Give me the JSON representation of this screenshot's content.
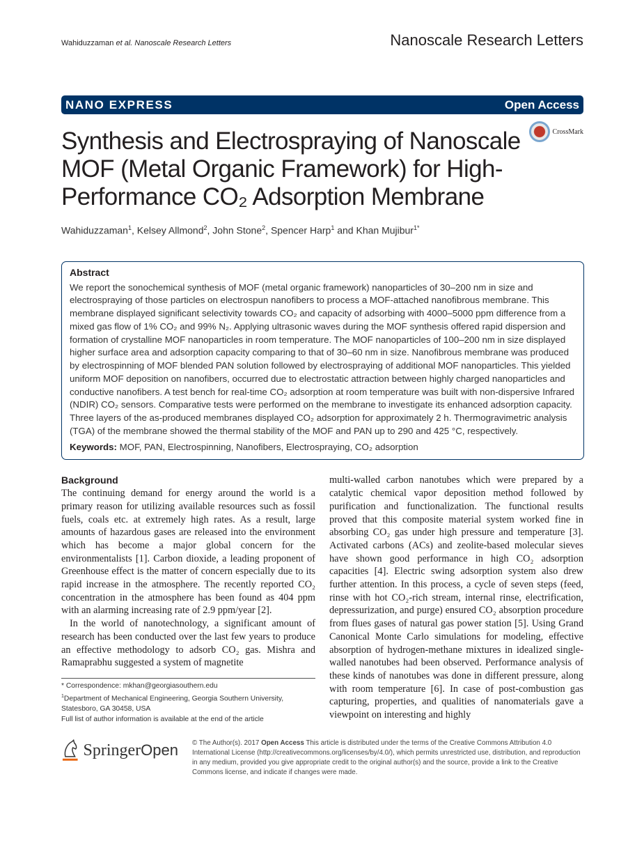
{
  "header": {
    "running_head_authors": "Wahiduzzaman",
    "running_head_etal": "et al. Nanoscale Research Letters",
    "journal": "Nanoscale Research Letters"
  },
  "banner": {
    "section": "NANO EXPRESS",
    "access": "Open Access"
  },
  "crossmark": "CrossMark",
  "title": "Synthesis and Electrospraying of Nanoscale MOF (Metal Organic Framework) for High-Performance CO₂ Adsorption Membrane",
  "authors": [
    {
      "name": "Wahiduzzaman",
      "aff": "1"
    },
    {
      "name": "Kelsey Allmond",
      "aff": "2"
    },
    {
      "name": "John Stone",
      "aff": "2"
    },
    {
      "name": "Spencer Harp",
      "aff": "1"
    },
    {
      "name": "Khan Mujibur",
      "aff": "1*"
    }
  ],
  "authors_sep": {
    "comma": ", ",
    "and": " and "
  },
  "abstract": {
    "heading": "Abstract",
    "text": "We report the sonochemical synthesis of MOF (metal organic framework) nanoparticles of 30–200 nm in size and electrospraying of those particles on electrospun nanofibers to process a MOF-attached nanofibrous membrane. This membrane displayed significant selectivity towards CO₂ and capacity of adsorbing with 4000–5000 ppm difference from a mixed gas flow of 1% CO₂ and 99% N₂. Applying ultrasonic waves during the MOF synthesis offered rapid dispersion and formation of crystalline MOF nanoparticles in room temperature. The MOF nanoparticles of 100–200 nm in size displayed higher surface area and adsorption capacity comparing to that of 30–60 nm in size. Nanofibrous membrane was produced by electrospinning of MOF blended PAN solution followed by electrospraying of additional MOF nanoparticles. This yielded uniform MOF deposition on nanofibers, occurred due to electrostatic attraction between highly charged nanoparticles and conductive nanofibers. A test bench for real-time CO₂ adsorption at room temperature was built with non-dispersive Infrared (NDIR) CO₂ sensors. Comparative tests were performed on the membrane to investigate its enhanced adsorption capacity. Three layers of the as-produced membranes displayed CO₂ adsorption for approximately 2 h. Thermogravimetric analysis (TGA) of the membrane showed the thermal stability of the MOF and PAN up to 290 and 425 °C, respectively.",
    "keywords_label": "Keywords:",
    "keywords": " MOF, PAN, Electrospinning, Nanofibers, Electrospraying, CO₂ adsorption"
  },
  "body": {
    "heading": "Background",
    "p1": "The continuing demand for energy around the world is a primary reason for utilizing available resources such as fossil fuels, coals etc. at extremely high rates. As a result, large amounts of hazardous gases are released into the environment which has become a major global concern for the environmentalists [1]. Carbon dioxide, a leading proponent of Greenhouse effect is the matter of concern especially due to its rapid increase in the atmosphere. The recently reported CO₂ concentration in the atmosphere has been found as 404 ppm with an alarming increasing rate of 2.9 ppm/year [2].",
    "p2": "In the world of nanotechnology, a significant amount of research has been conducted over the last few years to produce an effective methodology to adsorb CO₂ gas. Mishra and Ramaprabhu suggested a system of magnetite",
    "p3": "multi-walled carbon nanotubes which were prepared by a catalytic chemical vapor deposition method followed by purification and functionalization. The functional results proved that this composite material system worked fine in absorbing CO₂ gas under high pressure and temperature [3]. Activated carbons (ACs) and zeolite-based molecular sieves have shown good performance in high CO₂ adsorption capacities [4]. Electric swing adsorption system also drew further attention. In this process, a cycle of seven steps (feed, rinse with hot CO₂-rich stream, internal rinse, electrification, depressurization, and purge) ensured CO₂ absorption procedure from flues gases of natural gas power station [5]. Using Grand Canonical Monte Carlo simulations for modeling, effective absorption of hydrogen-methane mixtures in idealized single-walled nanotubes had been observed. Performance analysis of these kinds of nanotubes was done in different pressure, along with room temperature [6]. In case of post-combustion gas capturing, properties, and qualities of nanomaterials gave a viewpoint on interesting and highly"
  },
  "footnote": {
    "correspondence": "* Correspondence: mkhan@georgiasouthern.edu",
    "aff_mark": "1",
    "affiliation": "Department of Mechanical Engineering, Georgia Southern University, Statesboro, GA 30458, USA",
    "full_list": "Full list of author information is available at the end of the article"
  },
  "publisher": {
    "name1": "Springer",
    "name2": "Open",
    "logo_color": "#e8630a"
  },
  "license": {
    "copyright": "© The Author(s). 2017 ",
    "open_access": "Open Access",
    "text": " This article is distributed under the terms of the Creative Commons Attribution 4.0 International License (http://creativecommons.org/licenses/by/4.0/), which permits unrestricted use, distribution, and reproduction in any medium, provided you give appropriate credit to the original author(s) and the source, provide a link to the Creative Commons license, and indicate if changes were made."
  }
}
